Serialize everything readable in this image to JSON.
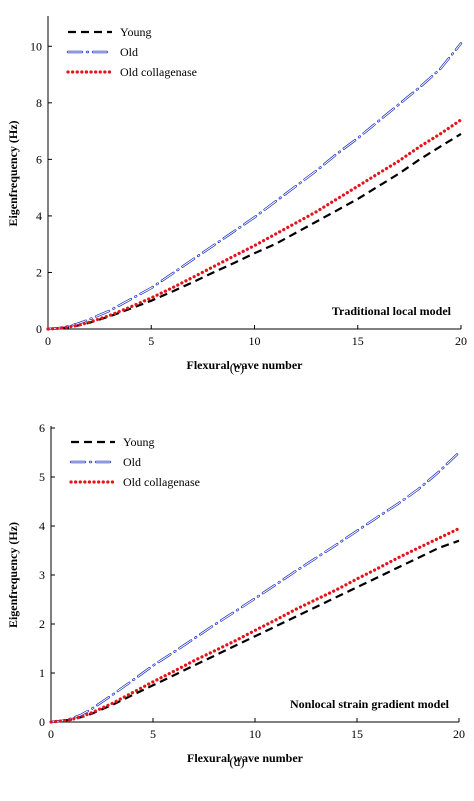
{
  "colors": {
    "young": "#000000",
    "old": "#1c2fc4",
    "old_collagenase": "#e3151a"
  },
  "chart_data": [
    {
      "type": "line",
      "panel_label": "(c)",
      "annotation": "Traditional local model",
      "xlabel": "Flexural wave number",
      "ylabel": "Eigenfrequency (Hz)",
      "xlim": [
        0,
        20
      ],
      "ylim": [
        0,
        11
      ],
      "xticks": [
        0,
        5,
        10,
        15,
        20
      ],
      "yticks": [
        0,
        2,
        4,
        6,
        8,
        10
      ],
      "grid": false,
      "legend_position": "top-left",
      "x": [
        0,
        0.5,
        1,
        1.5,
        2,
        3,
        4,
        5,
        6,
        7,
        8,
        9,
        10,
        11,
        12,
        13,
        14,
        15,
        16,
        17,
        18,
        19,
        20
      ],
      "series": [
        {
          "name": "Young",
          "values": [
            0,
            0.02,
            0.06,
            0.13,
            0.22,
            0.45,
            0.72,
            1.0,
            1.32,
            1.65,
            2.0,
            2.33,
            2.68,
            3.0,
            3.4,
            3.8,
            4.2,
            4.6,
            5.05,
            5.5,
            6.0,
            6.45,
            6.9
          ]
        },
        {
          "name": "Old",
          "values": [
            0,
            0.03,
            0.1,
            0.2,
            0.34,
            0.65,
            1.05,
            1.45,
            1.95,
            2.45,
            2.95,
            3.45,
            3.95,
            4.5,
            5.05,
            5.6,
            6.2,
            6.75,
            7.35,
            7.95,
            8.55,
            9.2,
            10.1
          ]
        },
        {
          "name": "Old collagenase",
          "values": [
            0,
            0.02,
            0.07,
            0.14,
            0.24,
            0.48,
            0.78,
            1.1,
            1.45,
            1.82,
            2.2,
            2.58,
            2.95,
            3.35,
            3.75,
            4.15,
            4.6,
            5.05,
            5.5,
            5.95,
            6.45,
            6.9,
            7.4
          ]
        }
      ]
    },
    {
      "type": "line",
      "panel_label": "(d)",
      "annotation": "Nonlocal strain gradient model",
      "xlabel": "Flexural wave number",
      "ylabel": "Eigenfrequency (Hz)",
      "xlim": [
        0,
        20
      ],
      "ylim": [
        0,
        6
      ],
      "xticks": [
        0,
        5,
        10,
        15,
        20
      ],
      "yticks": [
        0,
        1,
        2,
        3,
        4,
        5,
        6
      ],
      "grid": false,
      "legend_position": "top-left",
      "x": [
        0,
        0.5,
        1,
        1.5,
        2,
        3,
        4,
        5,
        6,
        7,
        8,
        9,
        10,
        11,
        12,
        13,
        14,
        15,
        16,
        17,
        18,
        19,
        20
      ],
      "series": [
        {
          "name": "Young",
          "values": [
            0,
            0.02,
            0.05,
            0.1,
            0.17,
            0.35,
            0.55,
            0.75,
            0.95,
            1.15,
            1.35,
            1.55,
            1.75,
            1.95,
            2.15,
            2.35,
            2.55,
            2.75,
            2.95,
            3.15,
            3.35,
            3.55,
            3.7
          ]
        },
        {
          "name": "Old",
          "values": [
            0,
            0.02,
            0.07,
            0.15,
            0.27,
            0.55,
            0.85,
            1.15,
            1.42,
            1.7,
            1.98,
            2.25,
            2.52,
            2.8,
            3.08,
            3.35,
            3.62,
            3.9,
            4.18,
            4.45,
            4.75,
            5.1,
            5.5
          ]
        },
        {
          "name": "Old collagenase",
          "values": [
            0,
            0.02,
            0.05,
            0.11,
            0.19,
            0.38,
            0.6,
            0.82,
            1.03,
            1.25,
            1.45,
            1.65,
            1.87,
            2.08,
            2.3,
            2.5,
            2.7,
            2.92,
            3.13,
            3.35,
            3.55,
            3.75,
            3.95
          ]
        }
      ]
    }
  ]
}
